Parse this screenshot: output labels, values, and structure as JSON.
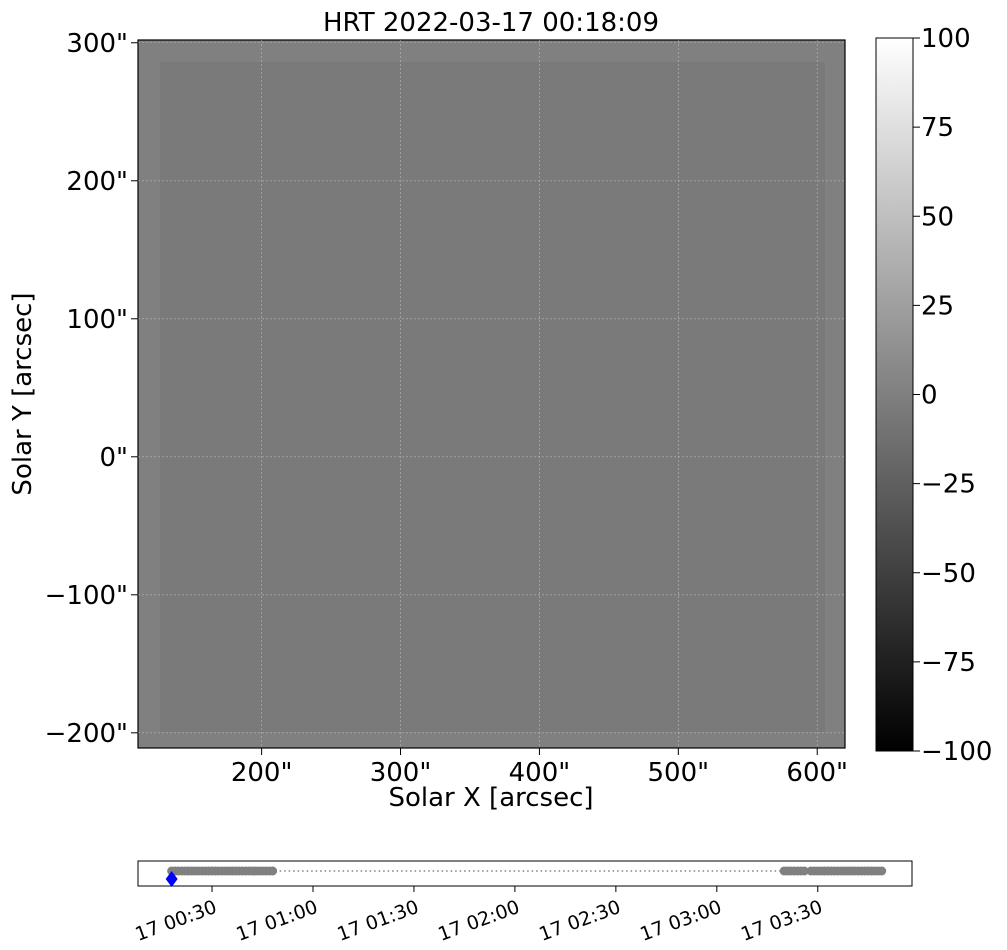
{
  "chart_data": [
    {
      "type": "image",
      "title": "HRT 2022-03-17 00:18:09",
      "x_label": "Solar X [arcsec]",
      "y_label": "Solar Y [arcsec]",
      "xlim": [
        111,
        620
      ],
      "ylim": [
        -211,
        302
      ],
      "xticks": [
        {
          "value": 200,
          "label": "200\""
        },
        {
          "value": 300,
          "label": "300\""
        },
        {
          "value": 400,
          "label": "400\""
        },
        {
          "value": 500,
          "label": "500\""
        },
        {
          "value": 600,
          "label": "600\""
        }
      ],
      "yticks": [
        {
          "value": 300,
          "label": "300\""
        },
        {
          "value": 200,
          "label": "200\""
        },
        {
          "value": 100,
          "label": "100\""
        },
        {
          "value": 0,
          "label": "0\""
        },
        {
          "value": -100,
          "label": "−100\""
        },
        {
          "value": -200,
          "label": "−200\""
        }
      ],
      "colorbar": {
        "clim": [
          -100,
          100
        ],
        "colors": [
          "#000000",
          "#ffffff"
        ],
        "ticks": [
          100,
          75,
          50,
          25,
          0,
          {
            "value": -25,
            "label": "−25"
          },
          {
            "value": -50,
            "label": "−50"
          },
          {
            "value": -75,
            "label": "−75"
          },
          {
            "value": -100,
            "label": "−100"
          }
        ]
      }
    },
    {
      "type": "timeline",
      "xlim": [
        "17 00:08",
        "17 03:58"
      ],
      "xticks": [
        "17 00:30",
        "17 01:00",
        "17 01:30",
        "17 02:00",
        "17 02:30",
        "17 03:00",
        "17 03:30"
      ],
      "color": "#808080",
      "current_color": "#0000ff",
      "current": "17 00:18",
      "x": [
        "17 00:18",
        "17 00:19",
        "17 00:20",
        "17 00:21",
        "17 00:22",
        "17 00:23",
        "17 00:24",
        "17 00:25",
        "17 00:26",
        "17 00:27",
        "17 00:28",
        "17 00:29",
        "17 00:30",
        "17 00:31",
        "17 00:32",
        "17 00:33",
        "17 00:34",
        "17 00:35",
        "17 00:36",
        "17 00:37",
        "17 00:38",
        "17 00:39",
        "17 00:40",
        "17 00:41",
        "17 00:42",
        "17 00:43",
        "17 00:44",
        "17 00:45",
        "17 00:46",
        "17 00:47",
        "17 00:48",
        "17 03:20",
        "17 03:21",
        "17 03:22",
        "17 03:23",
        "17 03:24",
        "17 03:25",
        "17 03:26",
        "17 03:28",
        "17 03:29",
        "17 03:30",
        "17 03:31",
        "17 03:32",
        "17 03:33",
        "17 03:34",
        "17 03:35",
        "17 03:36",
        "17 03:37",
        "17 03:38",
        "17 03:39",
        "17 03:40",
        "17 03:41",
        "17 03:42",
        "17 03:43",
        "17 03:44",
        "17 03:45",
        "17 03:46",
        "17 03:47",
        "17 03:48",
        "17 03:49"
      ]
    }
  ]
}
